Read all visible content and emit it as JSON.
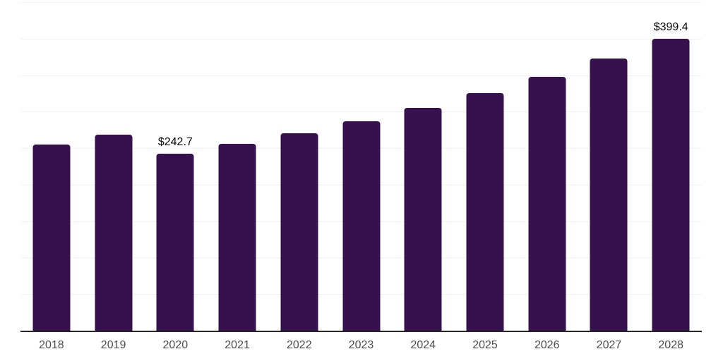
{
  "chart_data": {
    "type": "bar",
    "title": "",
    "xlabel": "",
    "ylabel": "",
    "categories": [
      "2018",
      "2019",
      "2020",
      "2021",
      "2022",
      "2023",
      "2024",
      "2025",
      "2026",
      "2027",
      "2028"
    ],
    "values": [
      255.0,
      268.4,
      242.7,
      255.6,
      270.1,
      287.0,
      305.3,
      325.4,
      347.2,
      372.3,
      399.4
    ],
    "data_labels": [
      "",
      "",
      "$242.7",
      "",
      "",
      "",
      "",
      "",
      "",
      "",
      "$399.4"
    ],
    "ylim": [
      0,
      450
    ],
    "gridline_step": 50,
    "grid": true,
    "legend": false,
    "y_axis_labels_visible": false,
    "x_axis_labels_visible": true
  },
  "colors": {
    "bar": "#36114E",
    "gridline": "#F1F1F3",
    "axis_line": "#262626",
    "tick_label": "#4D4D4D",
    "data_label": "#0A0A0A",
    "background": "#FFFFFF"
  }
}
